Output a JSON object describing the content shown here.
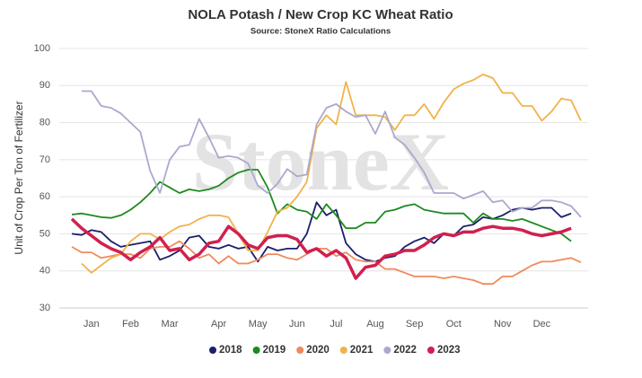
{
  "chart_data": {
    "type": "line",
    "title": "NOLA Potash / New Crop KC Wheat Ratio",
    "subtitle": "Source: StoneX Ratio Calculations",
    "watermark": "StoneX",
    "y_label": "Unit of Crop Per Ton of Fertilizer",
    "categories": [
      null,
      null,
      "Jan",
      null,
      null,
      null,
      "Feb",
      null,
      null,
      null,
      "Mar",
      null,
      null,
      null,
      null,
      "Apr",
      null,
      null,
      null,
      "May",
      null,
      null,
      null,
      "Jun",
      null,
      null,
      null,
      "Jul",
      null,
      null,
      null,
      "Aug",
      null,
      null,
      null,
      "Sep",
      null,
      null,
      null,
      "Oct",
      null,
      null,
      null,
      null,
      "Nov",
      null,
      null,
      null,
      "Dec",
      null,
      null,
      null,
      null
    ],
    "ylim": [
      30,
      100
    ],
    "yticks": [
      30,
      40,
      50,
      60,
      70,
      80,
      90,
      100
    ],
    "grid": true,
    "legend": "bottom",
    "series": [
      {
        "name": "2018",
        "color": "#1b1f6b",
        "values": [
          50,
          49.7,
          51,
          50.5,
          48,
          46.5,
          47,
          47.5,
          48,
          43,
          44,
          45.5,
          49,
          49.5,
          46.5,
          46,
          47,
          46,
          46.5,
          42.5,
          46.5,
          45.5,
          46,
          46,
          50,
          58.5,
          55,
          56.5,
          47.5,
          44.5,
          43,
          42.5,
          43.5,
          44,
          46.5,
          48,
          49,
          47.5,
          50,
          49.5,
          52,
          52.5,
          54.5,
          54,
          55,
          56.5,
          57,
          56.5,
          57,
          57,
          54.5,
          55.5,
          null
        ]
      },
      {
        "name": "2019",
        "color": "#1e8a1e",
        "values": [
          55.2,
          55.5,
          55,
          54.5,
          54.3,
          55,
          56.5,
          58.5,
          61,
          64,
          62.5,
          61,
          62,
          61.5,
          62,
          63,
          65,
          66.5,
          67.3,
          67.3,
          62.5,
          55.5,
          58,
          56.5,
          56,
          54,
          58,
          55,
          51.5,
          51.5,
          53,
          53,
          56,
          56.5,
          57.5,
          58,
          56.5,
          56,
          55.5,
          55.5,
          55.5,
          53,
          55.5,
          54,
          54,
          53.5,
          54,
          53,
          52,
          51,
          50,
          48,
          null
        ]
      },
      {
        "name": "2020",
        "color": "#f08a5d",
        "values": [
          46.5,
          45,
          45,
          43.5,
          44,
          44.5,
          44.5,
          43.5,
          46,
          46.5,
          46.5,
          48,
          46,
          43.5,
          44.5,
          42,
          44,
          42,
          42,
          43,
          44.5,
          44.5,
          43.5,
          43,
          44.5,
          46,
          46,
          44,
          45,
          43,
          42.5,
          42.5,
          40.5,
          40.5,
          39.5,
          38.5,
          38.5,
          38.5,
          38,
          38.5,
          38,
          37.5,
          36.5,
          36.5,
          38.5,
          38.5,
          40,
          41.5,
          42.5,
          42.5,
          43,
          43.5,
          42.3
        ]
      },
      {
        "name": "2021",
        "color": "#f2b24a",
        "values": [
          null,
          42,
          39.5,
          41.5,
          43.5,
          44.5,
          48,
          50,
          50,
          48.5,
          50.5,
          52,
          52.5,
          54,
          55,
          55,
          54.5,
          50,
          45.5,
          45.5,
          50.5,
          56,
          57,
          60,
          64,
          78.5,
          82,
          79.5,
          91,
          82,
          82,
          82,
          81.5,
          78,
          82,
          82,
          85,
          81,
          85.5,
          89,
          90.5,
          91.5,
          93,
          92,
          88,
          88,
          84.5,
          84.5,
          80.5,
          83,
          86.5,
          86,
          80.5
        ]
      },
      {
        "name": "2022",
        "color": "#a9a9cf",
        "values": [
          null,
          88.5,
          88.5,
          84.5,
          84,
          82.5,
          80,
          77.5,
          67,
          61,
          70,
          73.5,
          74,
          81,
          76,
          70.5,
          71,
          70.5,
          69,
          63,
          61,
          63.5,
          67.5,
          65.5,
          66,
          79.5,
          84,
          85,
          83,
          81.5,
          82,
          77,
          83,
          76,
          74,
          70.5,
          66.5,
          61,
          61,
          61,
          59.5,
          60.5,
          61.5,
          58.5,
          59,
          56,
          57,
          57,
          59,
          59,
          58.5,
          57.5,
          54.5
        ]
      },
      {
        "name": "2023",
        "color": "#d0204f",
        "values": [
          54,
          51.5,
          49.5,
          47.5,
          46,
          45,
          43,
          45,
          46.5,
          49,
          45.5,
          46,
          43,
          44.5,
          47.5,
          48,
          52,
          50,
          47,
          46,
          49,
          49.5,
          49.5,
          48.5,
          45,
          46,
          44,
          45.5,
          43.5,
          38,
          41,
          41.5,
          44,
          44.5,
          45.5,
          45.5,
          47,
          49,
          50,
          49.5,
          50.5,
          50.5,
          51.5,
          52,
          51.5,
          51.5,
          51,
          50,
          49.5,
          50,
          50.5,
          51.5,
          null
        ]
      }
    ]
  }
}
